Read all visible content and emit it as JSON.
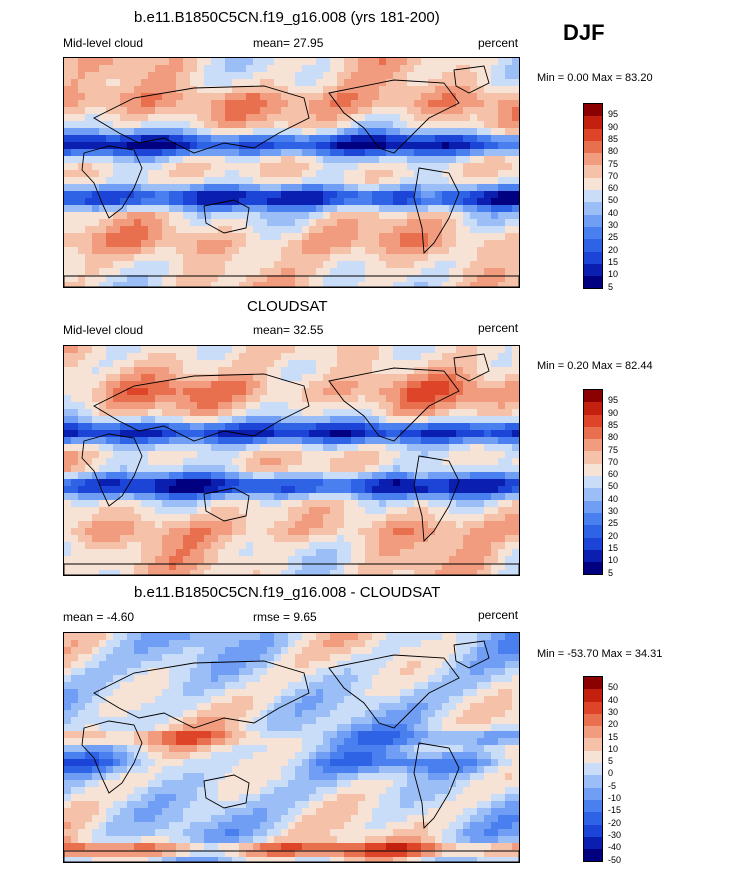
{
  "season": "DJF",
  "panels": [
    {
      "title": "b.e11.B1850C5CN.f19_g16.008 (yrs 181-200)",
      "left_text": "Mid-level cloud",
      "center_text": "mean=  27.95",
      "right_text": "percent",
      "minmax": "Min =   0.00 Max =  83.20",
      "colorbar_labels": [
        "95",
        "90",
        "85",
        "80",
        "75",
        "70",
        "60",
        "50",
        "40",
        "30",
        "25",
        "20",
        "15",
        "10",
        "5"
      ]
    },
    {
      "title": "CLOUDSAT",
      "left_text": "Mid-level cloud",
      "center_text": "mean=  32.55",
      "right_text": "percent",
      "minmax": "Min =   0.20 Max =  82.44",
      "colorbar_labels": [
        "95",
        "90",
        "85",
        "80",
        "75",
        "70",
        "60",
        "50",
        "40",
        "30",
        "25",
        "20",
        "15",
        "10",
        "5"
      ]
    },
    {
      "title": "b.e11.B1850C5CN.f19_g16.008 - CLOUDSAT",
      "left_text": "mean =  -4.60",
      "center_text": "rmse =    9.65",
      "right_text": "percent",
      "minmax": "Min = -53.70 Max =  34.31",
      "colorbar_labels": [
        "50",
        "40",
        "30",
        "20",
        "15",
        "10",
        "5",
        "0",
        "-5",
        "-10",
        "-15",
        "-20",
        "-30",
        "-40",
        "-50"
      ]
    }
  ],
  "chart_data": [
    {
      "type": "heatmap",
      "title": "b.e11.B1850C5CN.f19_g16.008 (yrs 181-200)",
      "variable": "Mid-level cloud",
      "units": "percent",
      "mean": 27.95,
      "min": 0.0,
      "max": 83.2,
      "levels": [
        5,
        10,
        15,
        20,
        25,
        30,
        40,
        50,
        60,
        70,
        75,
        80,
        85,
        90,
        95
      ],
      "colors": [
        "#000080",
        "#0a1fb0",
        "#1c44d6",
        "#2f63e6",
        "#4a7fef",
        "#6f9ef4",
        "#9cbef7",
        "#c9dcf8",
        "#f7e3d6",
        "#f6c1a9",
        "#f19c7f",
        "#e8704f",
        "#dd4428",
        "#c4200f",
        "#8b0000"
      ]
    },
    {
      "type": "heatmap",
      "title": "CLOUDSAT",
      "variable": "Mid-level cloud",
      "units": "percent",
      "mean": 32.55,
      "min": 0.2,
      "max": 82.44,
      "levels": [
        5,
        10,
        15,
        20,
        25,
        30,
        40,
        50,
        60,
        70,
        75,
        80,
        85,
        90,
        95
      ],
      "colors": [
        "#000080",
        "#0a1fb0",
        "#1c44d6",
        "#2f63e6",
        "#4a7fef",
        "#6f9ef4",
        "#9cbef7",
        "#c9dcf8",
        "#f7e3d6",
        "#f6c1a9",
        "#f19c7f",
        "#e8704f",
        "#dd4428",
        "#c4200f",
        "#8b0000"
      ]
    },
    {
      "type": "heatmap",
      "title": "b.e11.B1850C5CN.f19_g16.008 - CLOUDSAT",
      "units": "percent",
      "mean": -4.6,
      "rmse": 9.65,
      "min": -53.7,
      "max": 34.31,
      "levels": [
        -50,
        -40,
        -30,
        -20,
        -15,
        -10,
        -5,
        0,
        5,
        10,
        15,
        20,
        30,
        40,
        50
      ],
      "colors": [
        "#000080",
        "#0a1fb0",
        "#1c44d6",
        "#2f63e6",
        "#4a7fef",
        "#6f9ef4",
        "#9cbef7",
        "#c9dcf8",
        "#f7e3d6",
        "#f6c1a9",
        "#f19c7f",
        "#e8704f",
        "#dd4428",
        "#c4200f",
        "#8b0000"
      ]
    }
  ]
}
